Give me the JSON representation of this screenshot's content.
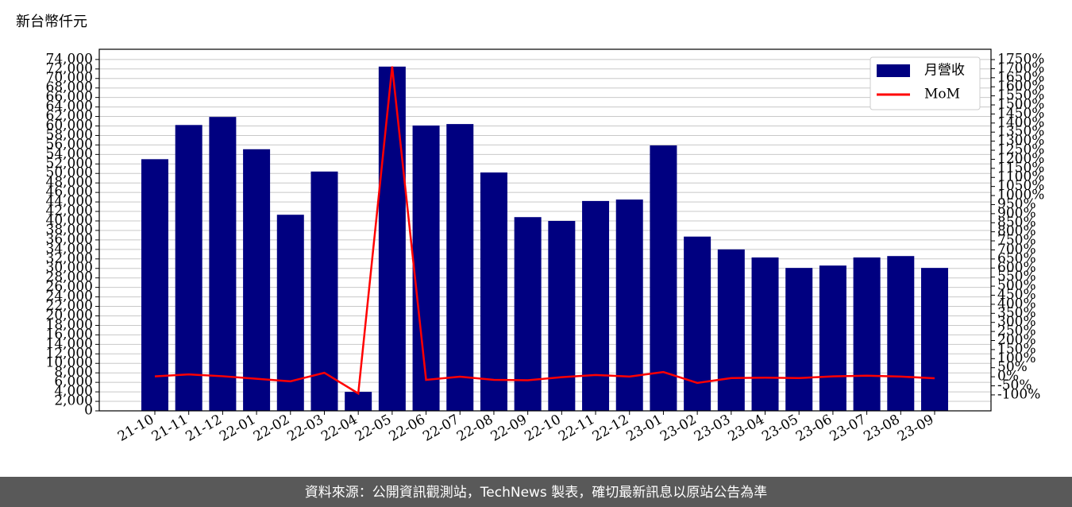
{
  "chart_data": {
    "type": "bar",
    "title": "新台幣仟元",
    "categories": [
      "21-10",
      "21-11",
      "21-12",
      "22-01",
      "22-02",
      "22-03",
      "22-04",
      "22-05",
      "22-06",
      "22-07",
      "22-08",
      "22-09",
      "22-10",
      "22-11",
      "22-12",
      "23-01",
      "23-02",
      "23-03",
      "23-04",
      "23-05",
      "23-06",
      "23-07",
      "23-08",
      "23-09"
    ],
    "series": [
      {
        "name": "月營收",
        "type": "bar",
        "color": "#000080",
        "values": [
          53000,
          60200,
          61900,
          55100,
          41300,
          50400,
          4000,
          72500,
          60100,
          60400,
          50200,
          40800,
          40000,
          44200,
          44500,
          55900,
          36700,
          34000,
          32300,
          30100,
          30600,
          32300,
          32600,
          30100
        ]
      },
      {
        "name": "MoM",
        "type": "line",
        "axis": "y2",
        "color": "#ff0000",
        "values": [
          2,
          13,
          3,
          -11,
          -25,
          22,
          -92,
          1712,
          -17,
          0.5,
          -17,
          -19,
          -2,
          10,
          1,
          26,
          -34,
          -7,
          -5,
          -7,
          2,
          6,
          1,
          -8
        ]
      }
    ],
    "ylim": [
      0,
      76150
    ],
    "yticks": [
      0,
      {
        "value": 2000,
        "label": "2,000"
      },
      {
        "value": 4000,
        "label": "4,000"
      },
      {
        "value": 6000,
        "label": "6,000"
      },
      {
        "value": 8000,
        "label": "8,000"
      },
      {
        "value": 10000,
        "label": "10,000"
      },
      {
        "value": 12000,
        "label": "12,000"
      },
      {
        "value": 14000,
        "label": "14,000"
      },
      {
        "value": 16000,
        "label": "16,000"
      },
      {
        "value": 18000,
        "label": "18,000"
      },
      {
        "value": 20000,
        "label": "20,000"
      },
      {
        "value": 22000,
        "label": "22,000"
      },
      {
        "value": 24000,
        "label": "24,000"
      },
      {
        "value": 26000,
        "label": "26,000"
      },
      {
        "value": 28000,
        "label": "28,000"
      },
      {
        "value": 30000,
        "label": "30,000"
      },
      {
        "value": 32000,
        "label": "32,000"
      },
      {
        "value": 34000,
        "label": "34,000"
      },
      {
        "value": 36000,
        "label": "36,000"
      },
      {
        "value": 38000,
        "label": "38,000"
      },
      {
        "value": 40000,
        "label": "40,000"
      },
      {
        "value": 42000,
        "label": "42,000"
      },
      {
        "value": 44000,
        "label": "44,000"
      },
      {
        "value": 46000,
        "label": "46,000"
      },
      {
        "value": 48000,
        "label": "48,000"
      },
      {
        "value": 50000,
        "label": "50,000"
      },
      {
        "value": 52000,
        "label": "52,000"
      },
      {
        "value": 54000,
        "label": "54,000"
      },
      {
        "value": 56000,
        "label": "56,000"
      },
      {
        "value": 58000,
        "label": "58,000"
      },
      {
        "value": 60000,
        "label": "60,000"
      },
      {
        "value": 62000,
        "label": "62,000"
      },
      {
        "value": 64000,
        "label": "64,000"
      },
      {
        "value": 66000,
        "label": "66,000"
      },
      {
        "value": 68000,
        "label": "68,000"
      },
      {
        "value": 70000,
        "label": "70,000"
      },
      {
        "value": 72000,
        "label": "72,000"
      },
      {
        "value": 74000,
        "label": "74,000"
      }
    ],
    "y2lim": [
      -188,
      1807
    ],
    "y2ticks": [
      {
        "value": -100,
        "label": "-100%"
      },
      {
        "value": -50,
        "label": "-50%"
      },
      {
        "value": 0,
        "label": "0%"
      },
      {
        "value": 50,
        "label": "50%"
      },
      {
        "value": 100,
        "label": "100%"
      },
      {
        "value": 150,
        "label": "150%"
      },
      {
        "value": 200,
        "label": "200%"
      },
      {
        "value": 250,
        "label": "250%"
      },
      {
        "value": 300,
        "label": "300%"
      },
      {
        "value": 350,
        "label": "350%"
      },
      {
        "value": 400,
        "label": "400%"
      },
      {
        "value": 450,
        "label": "450%"
      },
      {
        "value": 500,
        "label": "500%"
      },
      {
        "value": 550,
        "label": "550%"
      },
      {
        "value": 600,
        "label": "600%"
      },
      {
        "value": 650,
        "label": "650%"
      },
      {
        "value": 700,
        "label": "700%"
      },
      {
        "value": 750,
        "label": "750%"
      },
      {
        "value": 800,
        "label": "800%"
      },
      {
        "value": 850,
        "label": "850%"
      },
      {
        "value": 900,
        "label": "900%"
      },
      {
        "value": 950,
        "label": "950%"
      },
      {
        "value": 1000,
        "label": "1000%"
      },
      {
        "value": 1050,
        "label": "1050%"
      },
      {
        "value": 1100,
        "label": "1100%"
      },
      {
        "value": 1150,
        "label": "1150%"
      },
      {
        "value": 1200,
        "label": "1200%"
      },
      {
        "value": 1250,
        "label": "1250%"
      },
      {
        "value": 1300,
        "label": "1300%"
      },
      {
        "value": 1350,
        "label": "1350%"
      },
      {
        "value": 1400,
        "label": "1400%"
      },
      {
        "value": 1450,
        "label": "1450%"
      },
      {
        "value": 1500,
        "label": "1500%"
      },
      {
        "value": 1550,
        "label": "1550%"
      },
      {
        "value": 1600,
        "label": "1600%"
      },
      {
        "value": 1650,
        "label": "1650%"
      },
      {
        "value": 1700,
        "label": "1700%"
      },
      {
        "value": 1750,
        "label": "1750%"
      }
    ],
    "grid": true,
    "legend": "upper right",
    "footer": "資料來源：公開資訊觀測站，TechNews 製表，確切最新訊息以原站公告為準"
  }
}
